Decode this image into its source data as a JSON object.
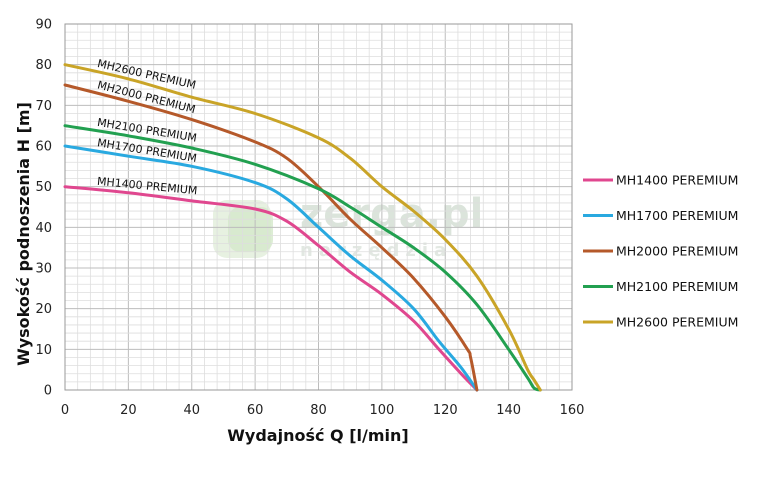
{
  "watermark": {
    "name": "zerga.pl",
    "tagline": "narzędzia",
    "color": "#cfe3c8"
  },
  "chart_data": {
    "type": "line",
    "xlabel": "Wydajność Q [l/min]",
    "ylabel": "Wysokość podnoszenia H [m]",
    "xlim": [
      0,
      160
    ],
    "ylim": [
      0,
      90
    ],
    "x_ticks": [
      0,
      20,
      40,
      60,
      80,
      100,
      120,
      140,
      160
    ],
    "y_ticks": [
      0,
      10,
      20,
      30,
      40,
      50,
      60,
      70,
      80,
      90
    ],
    "grid": true,
    "legend_position": "right",
    "series": [
      {
        "name": "MH1400 PEREMIUM",
        "curve_label": "MH1400 PREMIUM",
        "color": "#e0478f",
        "points": [
          [
            0,
            50
          ],
          [
            20,
            48.5
          ],
          [
            40,
            46.5
          ],
          [
            60,
            44.5
          ],
          [
            70,
            41.5
          ],
          [
            80,
            35.5
          ],
          [
            90,
            29
          ],
          [
            100,
            23.5
          ],
          [
            110,
            17
          ],
          [
            118,
            10
          ],
          [
            125,
            4
          ],
          [
            130,
            0
          ]
        ]
      },
      {
        "name": "MH1700 PEREMIUM",
        "curve_label": "MH1700 PREMIUM",
        "color": "#29a9e0",
        "points": [
          [
            0,
            60
          ],
          [
            20,
            57.5
          ],
          [
            40,
            55
          ],
          [
            60,
            51
          ],
          [
            70,
            47
          ],
          [
            80,
            40
          ],
          [
            90,
            33
          ],
          [
            100,
            27
          ],
          [
            110,
            20
          ],
          [
            118,
            12
          ],
          [
            125,
            5.5
          ],
          [
            130,
            0
          ]
        ]
      },
      {
        "name": "MH2000 PEREMIUM",
        "curve_label": "MH2000 PREMIUM",
        "color": "#b5592a",
        "points": [
          [
            0,
            75
          ],
          [
            20,
            71
          ],
          [
            40,
            66.5
          ],
          [
            60,
            61
          ],
          [
            70,
            57
          ],
          [
            80,
            50
          ],
          [
            90,
            42
          ],
          [
            100,
            35
          ],
          [
            110,
            27.5
          ],
          [
            120,
            18
          ],
          [
            127,
            10
          ],
          [
            128,
            8
          ],
          [
            130,
            0
          ]
        ]
      },
      {
        "name": "MH2100 PEREMIUM",
        "curve_label": "MH2100 PREMIUM",
        "color": "#22a050",
        "points": [
          [
            0,
            65
          ],
          [
            20,
            62.5
          ],
          [
            40,
            59.5
          ],
          [
            60,
            55.5
          ],
          [
            80,
            49.5
          ],
          [
            90,
            45
          ],
          [
            100,
            40
          ],
          [
            110,
            35
          ],
          [
            120,
            29
          ],
          [
            130,
            21
          ],
          [
            140,
            10
          ],
          [
            146,
            3
          ],
          [
            148,
            0.5
          ],
          [
            150,
            0
          ]
        ]
      },
      {
        "name": "MH2600 PEREMIUM",
        "curve_label": "MH2600 PREMIUM",
        "color": "#c9a427",
        "points": [
          [
            0,
            80
          ],
          [
            20,
            76.5
          ],
          [
            40,
            72
          ],
          [
            60,
            68
          ],
          [
            80,
            62
          ],
          [
            90,
            57
          ],
          [
            100,
            50
          ],
          [
            110,
            44
          ],
          [
            120,
            37
          ],
          [
            130,
            28
          ],
          [
            140,
            15
          ],
          [
            146,
            5
          ],
          [
            148,
            2.5
          ],
          [
            150,
            0
          ]
        ]
      }
    ]
  }
}
